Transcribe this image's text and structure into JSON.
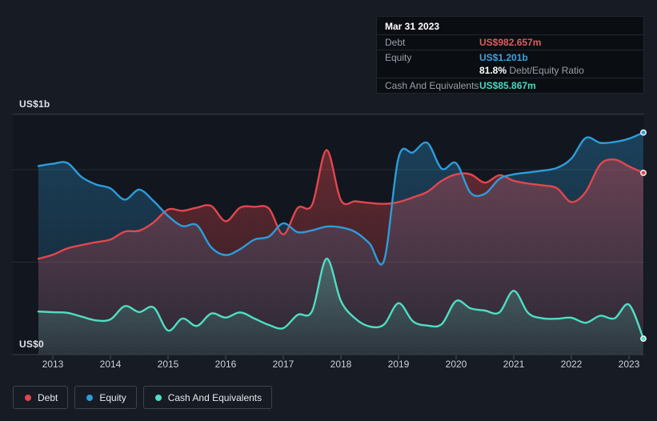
{
  "colors": {
    "background": "#161b24",
    "plot_background": "#12161e",
    "grid_border": "#3b414b",
    "grid_mid": "#262c35",
    "debt": "#e2474d",
    "equity": "#2d9cdb",
    "cash": "#4fdec2",
    "debt_value_text": "#e05e5e",
    "equity_value_text": "#3aa3e3",
    "cash_value_text": "#43dcc0"
  },
  "y_axis": {
    "top_label": "US$1b",
    "bottom_label": "US$0"
  },
  "x_axis": {
    "years": [
      "2013",
      "2014",
      "2015",
      "2016",
      "2017",
      "2018",
      "2019",
      "2020",
      "2021",
      "2022",
      "2023"
    ]
  },
  "tooltip": {
    "date": "Mar 31 2023",
    "debt": {
      "label": "Debt",
      "value": "US$982.657m"
    },
    "equity": {
      "label": "Equity",
      "value": "US$1.201b"
    },
    "ratio": {
      "value": "81.8%",
      "label": "Debt/Equity Ratio"
    },
    "cash": {
      "label": "Cash And Equivalents",
      "value": "US$85.867m"
    }
  },
  "legend": {
    "debt_label": "Debt",
    "equity_label": "Equity",
    "cash_label": "Cash And Equivalents"
  },
  "chart_data": {
    "type": "area",
    "unit": "US$ millions",
    "x_decimal_years": [
      2012.75,
      2013.0,
      2013.25,
      2013.5,
      2013.75,
      2014.0,
      2014.25,
      2014.5,
      2014.75,
      2015.0,
      2015.25,
      2015.5,
      2015.75,
      2016.0,
      2016.25,
      2016.5,
      2016.75,
      2017.0,
      2017.25,
      2017.5,
      2017.75,
      2018.0,
      2018.25,
      2018.5,
      2018.75,
      2019.0,
      2019.25,
      2019.5,
      2019.75,
      2020.0,
      2020.25,
      2020.5,
      2020.75,
      2021.0,
      2021.25,
      2021.5,
      2021.75,
      2022.0,
      2022.25,
      2022.5,
      2022.75,
      2023.0,
      2023.25
    ],
    "series": [
      {
        "name": "Debt",
        "color": "#e2474d",
        "values": [
          518,
          540,
          574,
          592,
          608,
          622,
          665,
          670,
          715,
          785,
          778,
          795,
          804,
          721,
          795,
          799,
          790,
          650,
          793,
          810,
          1106,
          835,
          829,
          820,
          815,
          825,
          850,
          880,
          940,
          975,
          975,
          930,
          970,
          940,
          925,
          915,
          900,
          825,
          880,
          1028,
          1055,
          1018,
          983
        ]
      },
      {
        "name": "Equity",
        "color": "#2d9cdb",
        "values": [
          1020,
          1032,
          1037,
          960,
          920,
          899,
          838,
          892,
          830,
          750,
          695,
          700,
          580,
          538,
          570,
          622,
          638,
          710,
          662,
          672,
          692,
          688,
          663,
          600,
          510,
          1065,
          1093,
          1145,
          1005,
          1035,
          875,
          870,
          950,
          975,
          985,
          995,
          1010,
          1060,
          1172,
          1145,
          1150,
          1168,
          1201
        ]
      },
      {
        "name": "Cash And Equivalents",
        "color": "#4fdec2",
        "values": [
          233,
          229,
          226,
          205,
          185,
          190,
          262,
          230,
          255,
          130,
          195,
          155,
          222,
          200,
          228,
          195,
          160,
          143,
          215,
          235,
          518,
          290,
          195,
          152,
          163,
          278,
          180,
          157,
          165,
          290,
          250,
          238,
          228,
          345,
          225,
          196,
          194,
          199,
          172,
          210,
          196,
          270,
          86
        ]
      }
    ],
    "ylim_millions": [
      0,
      1300
    ],
    "gridline_values_millions": [
      500,
      1000
    ],
    "y_tick_labels": [
      "US$1b",
      "US$0"
    ],
    "x_tick_labels": [
      "2013",
      "2014",
      "2015",
      "2016",
      "2017",
      "2018",
      "2019",
      "2020",
      "2021",
      "2022",
      "2023"
    ],
    "grid": true,
    "legend_position": "bottom-left",
    "highlighted_point": {
      "date": "Mar 31 2023",
      "debt_millions": 982.657,
      "equity_millions": 1201,
      "cash_millions": 85.867,
      "debt_equity_ratio": "81.8%"
    }
  }
}
